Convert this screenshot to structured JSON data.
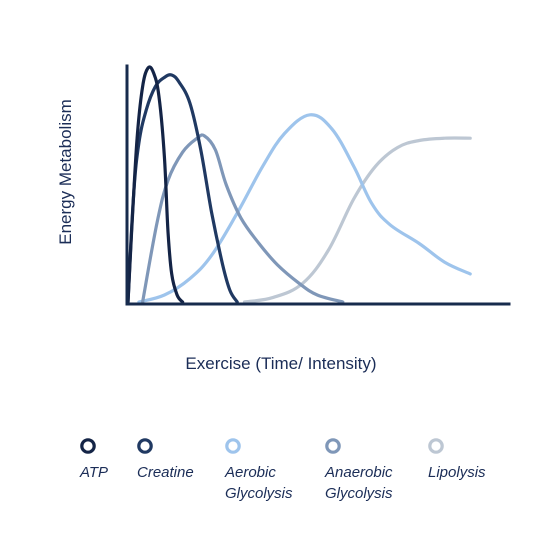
{
  "chart_data": {
    "type": "line",
    "xlabel": "Exercise (Time/ Intensity)",
    "ylabel": "Energy Metabolism",
    "x_range": [
      0,
      100
    ],
    "y_range": [
      0,
      100
    ],
    "grid": false,
    "legend_position": "bottom",
    "series": [
      {
        "name": "ATP",
        "color": "#142446",
        "points": [
          [
            0,
            0
          ],
          [
            1,
            30
          ],
          [
            2.5,
            70
          ],
          [
            4,
            92
          ],
          [
            5.5,
            100
          ],
          [
            7,
            98
          ],
          [
            8.5,
            88
          ],
          [
            10,
            62
          ],
          [
            11,
            30
          ],
          [
            12,
            12
          ],
          [
            13.5,
            3
          ],
          [
            15,
            0
          ]
        ]
      },
      {
        "name": "Creatine",
        "color": "#203962",
        "points": [
          [
            0,
            0
          ],
          [
            1.5,
            45
          ],
          [
            3,
            68
          ],
          [
            5,
            82
          ],
          [
            7.5,
            92
          ],
          [
            10,
            96
          ],
          [
            12,
            97
          ],
          [
            14,
            94
          ],
          [
            17,
            85
          ],
          [
            20,
            65
          ],
          [
            23,
            38
          ],
          [
            26,
            16
          ],
          [
            28,
            5
          ],
          [
            30,
            0
          ]
        ]
      },
      {
        "name": "Aerobic Glycolysis",
        "color": "#9ec4ec",
        "points": [
          [
            3,
            0
          ],
          [
            10,
            3
          ],
          [
            17,
            10
          ],
          [
            23,
            20
          ],
          [
            30,
            38
          ],
          [
            37,
            58
          ],
          [
            43,
            72
          ],
          [
            50,
            80
          ],
          [
            56,
            74
          ],
          [
            62,
            58
          ],
          [
            67,
            42
          ],
          [
            72,
            33
          ],
          [
            80,
            25
          ],
          [
            87,
            17
          ],
          [
            94,
            12
          ]
        ]
      },
      {
        "name": "Anaerobic Glycolysis",
        "color": "#7f97b8",
        "points": [
          [
            4,
            0
          ],
          [
            8,
            34
          ],
          [
            11,
            52
          ],
          [
            15,
            64
          ],
          [
            19,
            70
          ],
          [
            21,
            71
          ],
          [
            24,
            65
          ],
          [
            27,
            50
          ],
          [
            31,
            36
          ],
          [
            36,
            25
          ],
          [
            41,
            16
          ],
          [
            47,
            8
          ],
          [
            52,
            3
          ],
          [
            59,
            0
          ]
        ]
      },
      {
        "name": "Lipolysis",
        "color": "#bdc7d3",
        "points": [
          [
            32,
            0
          ],
          [
            40,
            2
          ],
          [
            48,
            8
          ],
          [
            55,
            22
          ],
          [
            62,
            44
          ],
          [
            68,
            58
          ],
          [
            74,
            66
          ],
          [
            80,
            69
          ],
          [
            87,
            70
          ],
          [
            94,
            70
          ]
        ]
      }
    ]
  }
}
